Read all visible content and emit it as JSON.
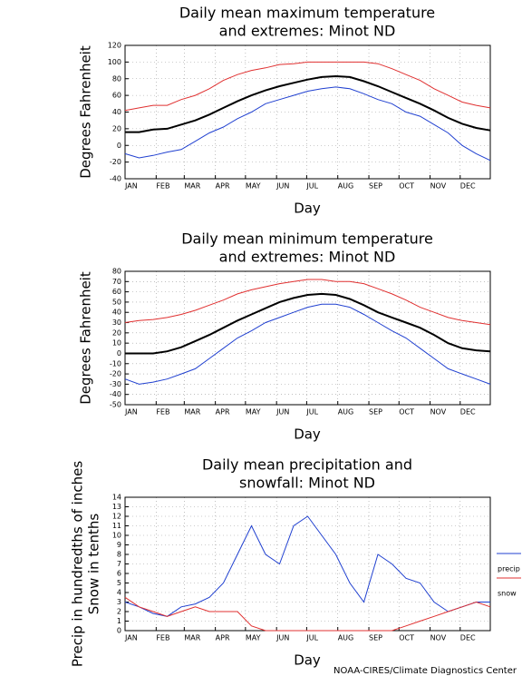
{
  "chart_data": [
    {
      "type": "line",
      "title": [
        "Daily mean maximum temperature",
        "and extremes: Minot ND"
      ],
      "xlabel": "Day",
      "ylabel": [
        "Degrees Fahrenheit"
      ],
      "x": [
        1,
        15,
        29,
        43,
        57,
        71,
        85,
        99,
        113,
        127,
        141,
        155,
        169,
        183,
        197,
        211,
        225,
        239,
        253,
        267,
        281,
        295,
        309,
        323,
        337,
        351,
        365
      ],
      "xlim": [
        1,
        365
      ],
      "xticks": [
        {
          "value": 1,
          "label": "JAN"
        },
        {
          "value": 32,
          "label": "FEB"
        },
        {
          "value": 60,
          "label": "MAR"
        },
        {
          "value": 91,
          "label": "APR"
        },
        {
          "value": 121,
          "label": "MAY"
        },
        {
          "value": 152,
          "label": "JUN"
        },
        {
          "value": 182,
          "label": "JUL"
        },
        {
          "value": 213,
          "label": "AUG"
        },
        {
          "value": 244,
          "label": "SEP"
        },
        {
          "value": 274,
          "label": "OCT"
        },
        {
          "value": 305,
          "label": "NOV"
        },
        {
          "value": 335,
          "label": "DEC"
        }
      ],
      "ylim": [
        -40,
        120
      ],
      "yticks": [
        -40,
        -20,
        0,
        20,
        40,
        60,
        80,
        100,
        120
      ],
      "grid": true,
      "series": [
        {
          "color": "#e03030",
          "values": [
            42,
            45,
            48,
            48,
            55,
            60,
            68,
            78,
            85,
            90,
            93,
            97,
            98,
            100,
            100,
            100,
            100,
            100,
            98,
            92,
            85,
            78,
            68,
            60,
            52,
            48,
            45
          ]
        },
        {
          "color": "#000000",
          "values": [
            16,
            16,
            19,
            20,
            25,
            30,
            37,
            45,
            53,
            60,
            66,
            71,
            75,
            79,
            82,
            83,
            82,
            77,
            71,
            64,
            57,
            50,
            42,
            33,
            26,
            21,
            18
          ]
        },
        {
          "color": "#2040d0",
          "values": [
            -10,
            -15,
            -12,
            -8,
            -5,
            5,
            15,
            22,
            32,
            40,
            50,
            55,
            60,
            65,
            68,
            70,
            68,
            62,
            55,
            50,
            40,
            35,
            25,
            15,
            0,
            -10,
            -18
          ]
        }
      ]
    },
    {
      "type": "line",
      "title": [
        "Daily mean minimum temperature",
        "and extremes: Minot ND"
      ],
      "xlabel": "Day",
      "ylabel": [
        "Degrees Fahrenheit"
      ],
      "x": [
        1,
        15,
        29,
        43,
        57,
        71,
        85,
        99,
        113,
        127,
        141,
        155,
        169,
        183,
        197,
        211,
        225,
        239,
        253,
        267,
        281,
        295,
        309,
        323,
        337,
        351,
        365
      ],
      "xlim": [
        1,
        365
      ],
      "xticks": [
        {
          "value": 1,
          "label": "JAN"
        },
        {
          "value": 32,
          "label": "FEB"
        },
        {
          "value": 60,
          "label": "MAR"
        },
        {
          "value": 91,
          "label": "APR"
        },
        {
          "value": 121,
          "label": "MAY"
        },
        {
          "value": 152,
          "label": "JUN"
        },
        {
          "value": 182,
          "label": "JUL"
        },
        {
          "value": 213,
          "label": "AUG"
        },
        {
          "value": 244,
          "label": "SEP"
        },
        {
          "value": 274,
          "label": "OCT"
        },
        {
          "value": 305,
          "label": "NOV"
        },
        {
          "value": 335,
          "label": "DEC"
        }
      ],
      "ylim": [
        -50,
        80
      ],
      "yticks": [
        -50,
        -40,
        -30,
        -20,
        -10,
        0,
        10,
        20,
        30,
        40,
        50,
        60,
        70,
        80
      ],
      "grid": true,
      "series": [
        {
          "color": "#e03030",
          "values": [
            30,
            32,
            33,
            35,
            38,
            42,
            47,
            52,
            58,
            62,
            65,
            68,
            70,
            72,
            72,
            70,
            70,
            68,
            63,
            58,
            52,
            45,
            40,
            35,
            32,
            30,
            28
          ]
        },
        {
          "color": "#000000",
          "values": [
            0,
            0,
            0,
            2,
            6,
            12,
            18,
            25,
            32,
            38,
            44,
            50,
            54,
            57,
            58,
            57,
            53,
            47,
            40,
            35,
            30,
            25,
            18,
            10,
            5,
            3,
            2
          ]
        },
        {
          "color": "#2040d0",
          "values": [
            -25,
            -30,
            -28,
            -25,
            -20,
            -15,
            -5,
            5,
            15,
            22,
            30,
            35,
            40,
            45,
            48,
            48,
            45,
            38,
            30,
            22,
            15,
            5,
            -5,
            -15,
            -20,
            -25,
            -30
          ]
        }
      ]
    },
    {
      "type": "line",
      "title": [
        "Daily mean precipitation and",
        "snowfall: Minot ND"
      ],
      "xlabel": "Day",
      "ylabel": [
        "Precip in hundredths of inches",
        "Snow in tenths"
      ],
      "x": [
        1,
        15,
        29,
        43,
        57,
        71,
        85,
        99,
        113,
        127,
        141,
        155,
        169,
        183,
        197,
        211,
        225,
        239,
        253,
        267,
        281,
        295,
        309,
        323,
        337,
        351,
        365
      ],
      "xlim": [
        1,
        365
      ],
      "xticks": [
        {
          "value": 1,
          "label": "JAN"
        },
        {
          "value": 32,
          "label": "FEB"
        },
        {
          "value": 60,
          "label": "MAR"
        },
        {
          "value": 91,
          "label": "APR"
        },
        {
          "value": 121,
          "label": "MAY"
        },
        {
          "value": 152,
          "label": "JUN"
        },
        {
          "value": 182,
          "label": "JUL"
        },
        {
          "value": 213,
          "label": "AUG"
        },
        {
          "value": 244,
          "label": "SEP"
        },
        {
          "value": 274,
          "label": "OCT"
        },
        {
          "value": 305,
          "label": "NOV"
        },
        {
          "value": 335,
          "label": "DEC"
        }
      ],
      "ylim": [
        0,
        14
      ],
      "yticks": [
        0,
        1,
        2,
        3,
        4,
        5,
        6,
        7,
        8,
        9,
        10,
        11,
        12,
        13,
        14
      ],
      "grid": true,
      "legend": "right",
      "series": [
        {
          "name": "precip",
          "color": "#2040d0",
          "values": [
            3,
            2.5,
            1.8,
            1.5,
            2.5,
            2.8,
            3.5,
            5,
            8,
            11,
            8,
            7,
            11,
            12,
            10,
            8,
            5,
            3,
            8,
            7,
            5.5,
            5,
            3,
            2,
            2.5,
            3,
            3
          ]
        },
        {
          "name": "snow",
          "color": "#e03030",
          "values": [
            3.5,
            2.5,
            2,
            1.5,
            2,
            2.5,
            2,
            2,
            2,
            0.5,
            0,
            0,
            0,
            0,
            0,
            0,
            0,
            0,
            0,
            0,
            0.5,
            1,
            1.5,
            2,
            2.5,
            3,
            2.5
          ]
        }
      ]
    }
  ],
  "footer": "NOAA-CIRES/Climate Diagnostics Center"
}
